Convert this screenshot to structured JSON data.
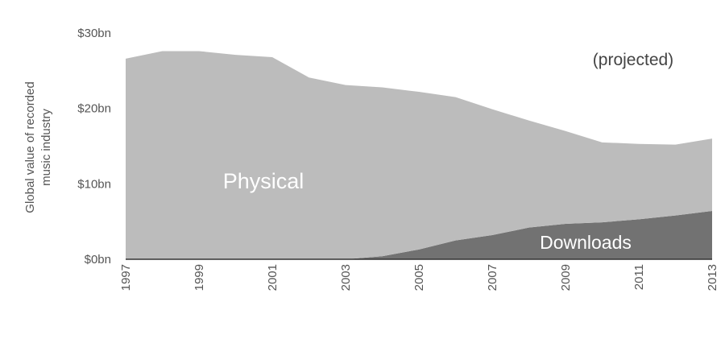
{
  "chart_data": {
    "type": "stacked-area",
    "ylabel": [
      "Global value of recorded",
      "music industry"
    ],
    "annotation": "(projected)",
    "x": [
      1997,
      1998,
      1999,
      2000,
      2001,
      2002,
      2003,
      2004,
      2005,
      2006,
      2007,
      2008,
      2009,
      2010,
      2011,
      2012,
      2013
    ],
    "series": [
      {
        "name": "Downloads",
        "color": "#727272",
        "values": [
          0,
          0,
          0,
          0,
          0,
          0,
          0,
          0.4,
          1.3,
          2.5,
          3.2,
          4.2,
          4.7,
          4.9,
          5.3,
          5.8,
          6.4
        ]
      },
      {
        "name": "Physical",
        "color": "#bcbcbc",
        "values": [
          26.6,
          27.6,
          27.6,
          27.1,
          26.8,
          24.1,
          23.1,
          22.4,
          20.9,
          19.0,
          16.7,
          14.2,
          12.3,
          10.6,
          10.0,
          9.4,
          9.6
        ]
      }
    ],
    "xlim": [
      1997,
      2013
    ],
    "xticks": [
      1997,
      1999,
      2001,
      2003,
      2005,
      2007,
      2009,
      2011,
      2013
    ],
    "ylim": [
      0,
      30
    ],
    "yticks": [
      {
        "value": 0,
        "label": "$0bn"
      },
      {
        "value": 10,
        "label": "$10bn"
      },
      {
        "value": 20,
        "label": "$20bn"
      },
      {
        "value": 30,
        "label": "$30bn"
      }
    ]
  }
}
